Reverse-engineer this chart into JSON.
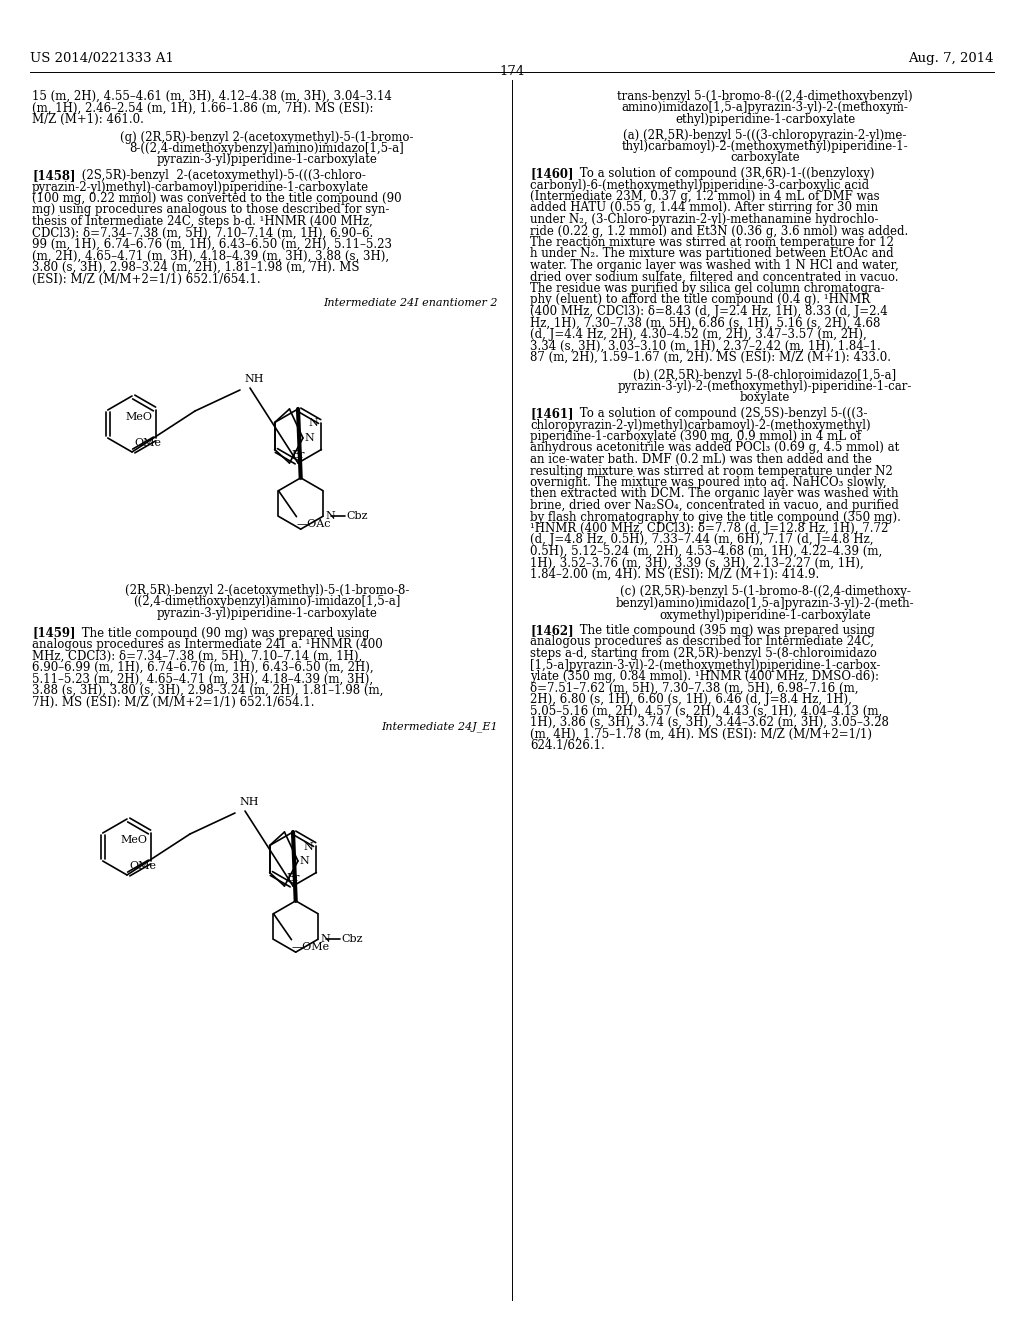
{
  "bg": "#ffffff",
  "header_left": "US 2014/0221333 A1",
  "header_right": "Aug. 7, 2014",
  "page_num": "174",
  "fs": 8.5,
  "fs_hdr": 9.5,
  "fs_lbl": 8.0,
  "fs_chem": 8.0
}
